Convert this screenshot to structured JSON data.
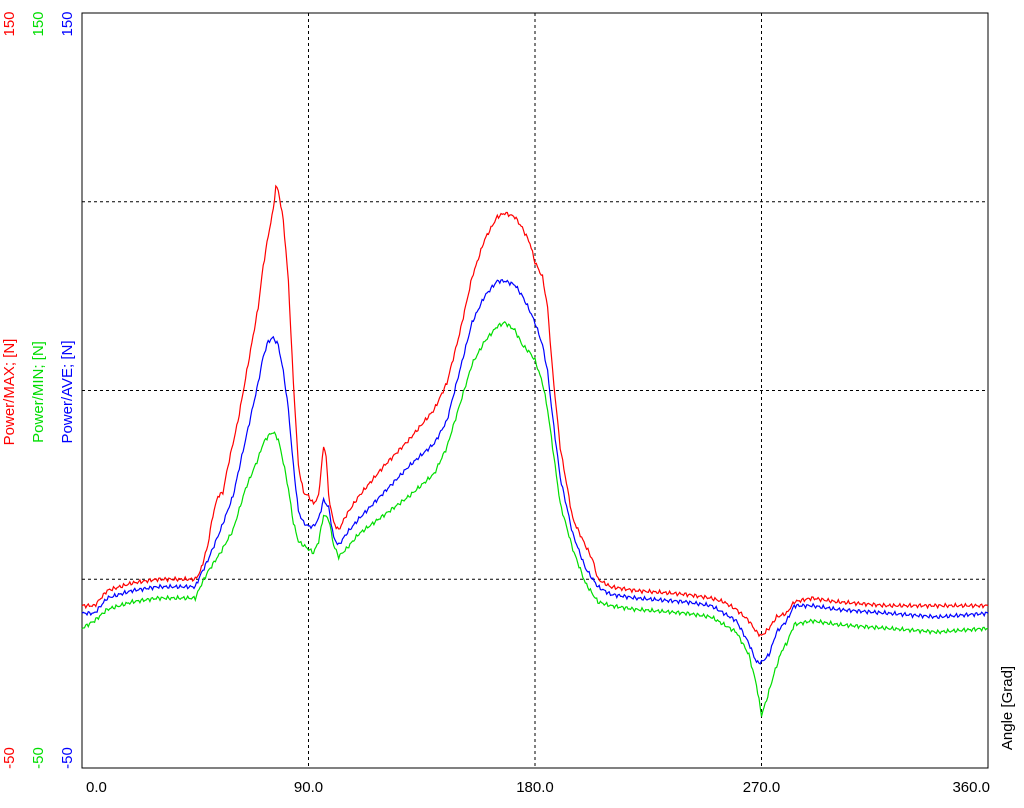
{
  "colors": {
    "max": "#ff0000",
    "min": "#00dd00",
    "ave": "#0000ff",
    "grid": "#000000",
    "frame": "#000000"
  },
  "chart_data": {
    "type": "line",
    "xlabel": "Angle [Grad]",
    "xlim": [
      0,
      360
    ],
    "ylim": [
      -50,
      150
    ],
    "x_ticks": [
      "0.0",
      "90.0",
      "180.0",
      "270.0",
      "360.0"
    ],
    "x_tick_values": [
      0,
      90,
      180,
      270,
      360
    ],
    "y_tick_labels": {
      "max": {
        "top": "150",
        "bottom": "-50"
      },
      "min": {
        "top": "150",
        "bottom": "-50"
      },
      "ave": {
        "top": "150",
        "bottom": "-50"
      }
    },
    "grid_y_values": [
      0,
      50,
      100
    ],
    "grid": true,
    "series": [
      {
        "name": "Power/MAX; [N]",
        "color": "#ff0000",
        "points": [
          [
            0,
            -7
          ],
          [
            5,
            -7
          ],
          [
            10,
            -3
          ],
          [
            20,
            -1
          ],
          [
            30,
            0
          ],
          [
            40,
            0
          ],
          [
            45,
            0
          ],
          [
            47,
            2
          ],
          [
            50,
            9
          ],
          [
            52,
            17
          ],
          [
            54,
            22
          ],
          [
            56,
            23
          ],
          [
            58,
            30
          ],
          [
            62,
            42
          ],
          [
            66,
            57
          ],
          [
            70,
            72
          ],
          [
            72,
            83
          ],
          [
            74,
            91
          ],
          [
            76,
            98
          ],
          [
            77,
            104
          ],
          [
            78,
            103
          ],
          [
            80,
            95
          ],
          [
            82,
            79
          ],
          [
            84,
            52
          ],
          [
            86,
            30
          ],
          [
            88,
            23
          ],
          [
            90,
            22
          ],
          [
            92,
            20
          ],
          [
            94,
            22
          ],
          [
            95,
            29
          ],
          [
            96,
            35
          ],
          [
            97,
            33
          ],
          [
            98,
            22
          ],
          [
            100,
            15
          ],
          [
            102,
            13
          ],
          [
            105,
            17
          ],
          [
            110,
            22
          ],
          [
            120,
            30
          ],
          [
            130,
            37
          ],
          [
            140,
            45
          ],
          [
            145,
            52
          ],
          [
            150,
            65
          ],
          [
            155,
            80
          ],
          [
            160,
            90
          ],
          [
            165,
            96
          ],
          [
            168,
            97
          ],
          [
            172,
            96
          ],
          [
            175,
            93
          ],
          [
            178,
            89
          ],
          [
            180,
            84
          ],
          [
            183,
            80
          ],
          [
            185,
            72
          ],
          [
            187,
            55
          ],
          [
            190,
            35
          ],
          [
            195,
            16
          ],
          [
            200,
            9
          ],
          [
            203,
            5
          ],
          [
            205,
            0
          ],
          [
            210,
            -2
          ],
          [
            220,
            -3
          ],
          [
            240,
            -4
          ],
          [
            250,
            -5
          ],
          [
            255,
            -6
          ],
          [
            260,
            -8
          ],
          [
            265,
            -11
          ],
          [
            268,
            -14
          ],
          [
            270,
            -15
          ],
          [
            273,
            -13
          ],
          [
            276,
            -10
          ],
          [
            280,
            -9
          ],
          [
            283,
            -6
          ],
          [
            290,
            -5
          ],
          [
            300,
            -6
          ],
          [
            320,
            -7
          ],
          [
            340,
            -7
          ],
          [
            360,
            -7
          ]
        ]
      },
      {
        "name": "Power/MIN; [N]",
        "color": "#00dd00",
        "points": [
          [
            0,
            -13
          ],
          [
            5,
            -11
          ],
          [
            10,
            -8
          ],
          [
            20,
            -6
          ],
          [
            30,
            -5
          ],
          [
            40,
            -5
          ],
          [
            45,
            -5
          ],
          [
            47,
            -2
          ],
          [
            50,
            2
          ],
          [
            55,
            7
          ],
          [
            60,
            13
          ],
          [
            65,
            24
          ],
          [
            70,
            32
          ],
          [
            72,
            36
          ],
          [
            74,
            38
          ],
          [
            76,
            39
          ],
          [
            78,
            37
          ],
          [
            80,
            31
          ],
          [
            82,
            24
          ],
          [
            84,
            15
          ],
          [
            86,
            10
          ],
          [
            88,
            9
          ],
          [
            90,
            8
          ],
          [
            92,
            7
          ],
          [
            94,
            10
          ],
          [
            96,
            17
          ],
          [
            98,
            16
          ],
          [
            100,
            9
          ],
          [
            102,
            6
          ],
          [
            105,
            8
          ],
          [
            110,
            12
          ],
          [
            120,
            17
          ],
          [
            130,
            22
          ],
          [
            140,
            28
          ],
          [
            145,
            35
          ],
          [
            150,
            46
          ],
          [
            155,
            57
          ],
          [
            160,
            63
          ],
          [
            165,
            67
          ],
          [
            168,
            68
          ],
          [
            172,
            66
          ],
          [
            175,
            62
          ],
          [
            178,
            60
          ],
          [
            180,
            58
          ],
          [
            183,
            52
          ],
          [
            185,
            45
          ],
          [
            187,
            35
          ],
          [
            190,
            20
          ],
          [
            195,
            8
          ],
          [
            200,
            -1
          ],
          [
            203,
            -4
          ],
          [
            205,
            -6
          ],
          [
            210,
            -7
          ],
          [
            220,
            -8
          ],
          [
            240,
            -9
          ],
          [
            250,
            -10
          ],
          [
            255,
            -12
          ],
          [
            260,
            -14
          ],
          [
            265,
            -20
          ],
          [
            268,
            -28
          ],
          [
            270,
            -36
          ],
          [
            272,
            -32
          ],
          [
            275,
            -25
          ],
          [
            278,
            -19
          ],
          [
            280,
            -17
          ],
          [
            283,
            -12
          ],
          [
            290,
            -11
          ],
          [
            300,
            -12
          ],
          [
            320,
            -13
          ],
          [
            340,
            -14
          ],
          [
            360,
            -13
          ]
        ]
      },
      {
        "name": "Power/AVE; [N]",
        "color": "#0000ff",
        "points": [
          [
            0,
            -9
          ],
          [
            5,
            -9
          ],
          [
            10,
            -5
          ],
          [
            20,
            -3
          ],
          [
            30,
            -2
          ],
          [
            40,
            -2
          ],
          [
            45,
            -2
          ],
          [
            47,
            1
          ],
          [
            50,
            5
          ],
          [
            55,
            13
          ],
          [
            60,
            22
          ],
          [
            65,
            37
          ],
          [
            70,
            52
          ],
          [
            72,
            59
          ],
          [
            74,
            63
          ],
          [
            76,
            64
          ],
          [
            78,
            62
          ],
          [
            80,
            55
          ],
          [
            82,
            45
          ],
          [
            84,
            30
          ],
          [
            86,
            18
          ],
          [
            88,
            15
          ],
          [
            90,
            14
          ],
          [
            92,
            14
          ],
          [
            94,
            16
          ],
          [
            96,
            21
          ],
          [
            98,
            19
          ],
          [
            100,
            11
          ],
          [
            102,
            9
          ],
          [
            105,
            12
          ],
          [
            110,
            16
          ],
          [
            120,
            23
          ],
          [
            130,
            30
          ],
          [
            140,
            36
          ],
          [
            145,
            42
          ],
          [
            150,
            55
          ],
          [
            155,
            68
          ],
          [
            160,
            75
          ],
          [
            165,
            79
          ],
          [
            168,
            79
          ],
          [
            172,
            78
          ],
          [
            175,
            75
          ],
          [
            178,
            71
          ],
          [
            180,
            68
          ],
          [
            183,
            62
          ],
          [
            185,
            55
          ],
          [
            187,
            43
          ],
          [
            190,
            27
          ],
          [
            195,
            12
          ],
          [
            200,
            3
          ],
          [
            203,
            0
          ],
          [
            205,
            -2
          ],
          [
            210,
            -4
          ],
          [
            220,
            -5
          ],
          [
            240,
            -6
          ],
          [
            250,
            -7
          ],
          [
            255,
            -9
          ],
          [
            260,
            -11
          ],
          [
            265,
            -17
          ],
          [
            268,
            -22
          ],
          [
            270,
            -22
          ],
          [
            273,
            -20
          ],
          [
            276,
            -14
          ],
          [
            280,
            -11
          ],
          [
            283,
            -7
          ],
          [
            290,
            -7
          ],
          [
            300,
            -8
          ],
          [
            320,
            -9
          ],
          [
            340,
            -10
          ],
          [
            360,
            -9
          ]
        ]
      }
    ]
  }
}
